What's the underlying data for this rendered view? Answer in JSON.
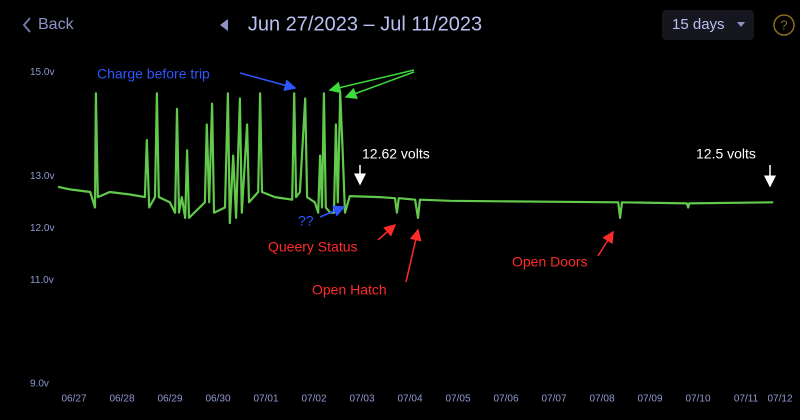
{
  "header": {
    "back": "Back",
    "range": "Jun 27/2023 – Jul 11/2023",
    "period": "15 days",
    "help": "?"
  },
  "chart_data": {
    "type": "line",
    "color": "#62c94c",
    "x": [
      0,
      0.25,
      0.67,
      0.77,
      0.79,
      0.83,
      1.08,
      1.5,
      1.81,
      1.85,
      1.9,
      2.02,
      2.06,
      2.1,
      2.33,
      2.44,
      2.48,
      2.52,
      2.58,
      2.65,
      2.69,
      2.73,
      3.06,
      3.1,
      3.15,
      3.21,
      3.25,
      3.48,
      3.54,
      3.58,
      3.65,
      3.71,
      3.79,
      3.83,
      3.94,
      3.98,
      4.17,
      4.21,
      4.25,
      4.52,
      4.88,
      4.92,
      4.96,
      5.04,
      5.15,
      5.19,
      5.35,
      5.42,
      5.46,
      5.5,
      5.54,
      5.58,
      5.67,
      5.75,
      5.79,
      5.83,
      5.88,
      5.92,
      5.98,
      6.08,
      6.71,
      7.02,
      7.06,
      7.1,
      7.44,
      7.5,
      7.54,
      8.17,
      9.21,
      10.46,
      11.67,
      11.71,
      11.75,
      13.1,
      13.13,
      13.15,
      14.9
    ],
    "values": [
      12.8,
      12.75,
      12.7,
      12.4,
      14.6,
      12.6,
      12.7,
      12.65,
      12.6,
      13.7,
      12.4,
      12.6,
      14.6,
      12.6,
      12.5,
      12.3,
      14.3,
      12.3,
      12.6,
      12.2,
      13.5,
      12.2,
      12.5,
      14.0,
      12.5,
      14.4,
      12.3,
      12.4,
      14.6,
      12.1,
      13.4,
      12.2,
      14.5,
      12.3,
      14.0,
      12.5,
      12.7,
      14.6,
      12.7,
      12.6,
      12.55,
      14.6,
      12.6,
      12.7,
      14.5,
      12.6,
      12.5,
      12.3,
      13.4,
      12.4,
      14.6,
      12.4,
      12.3,
      12.3,
      14.0,
      12.5,
      14.6,
      13.7,
      12.3,
      12.62,
      12.6,
      12.58,
      12.3,
      12.58,
      12.55,
      12.2,
      12.55,
      12.53,
      12.52,
      12.51,
      12.5,
      12.2,
      12.5,
      12.48,
      12.4,
      12.48,
      12.5
    ],
    "xlim": [
      0,
      15
    ],
    "xticks": [
      {
        "value": 0,
        "label": "06/27"
      },
      {
        "value": 1,
        "label": "06/28"
      },
      {
        "value": 2,
        "label": "06/29"
      },
      {
        "value": 3,
        "label": "06/30"
      },
      {
        "value": 4,
        "label": "07/01"
      },
      {
        "value": 5,
        "label": "07/02"
      },
      {
        "value": 6,
        "label": "07/03"
      },
      {
        "value": 7,
        "label": "07/04"
      },
      {
        "value": 8,
        "label": "07/05"
      },
      {
        "value": 9,
        "label": "07/06"
      },
      {
        "value": 10,
        "label": "07/07"
      },
      {
        "value": 11,
        "label": "07/08"
      },
      {
        "value": 12,
        "label": "07/09"
      },
      {
        "value": 13,
        "label": "07/10"
      },
      {
        "value": 14,
        "label": "07/11"
      },
      {
        "value": 15,
        "label": "07/12"
      }
    ],
    "ylim": [
      9,
      15.3
    ],
    "yticks": [
      {
        "value": 15,
        "label": "15.0v"
      },
      {
        "value": 13,
        "label": "13.0v"
      },
      {
        "value": 12,
        "label": "12.0v"
      },
      {
        "value": 11,
        "label": "11.0v"
      },
      {
        "value": 9,
        "label": "9.0v"
      }
    ],
    "annotations": [
      {
        "text": "Charge before trip",
        "color": "#2f55ff"
      },
      {
        "text": "??",
        "color": "#2f55ff"
      },
      {
        "text": "12.62 volts",
        "color": "#ffffff"
      },
      {
        "text": "12.5 volts",
        "color": "#ffffff"
      },
      {
        "text": "Queery Status",
        "color": "#ff2a2a"
      },
      {
        "text": "Open Hatch",
        "color": "#ff2a2a"
      },
      {
        "text": "Open Doors",
        "color": "#ff2a2a"
      }
    ]
  }
}
